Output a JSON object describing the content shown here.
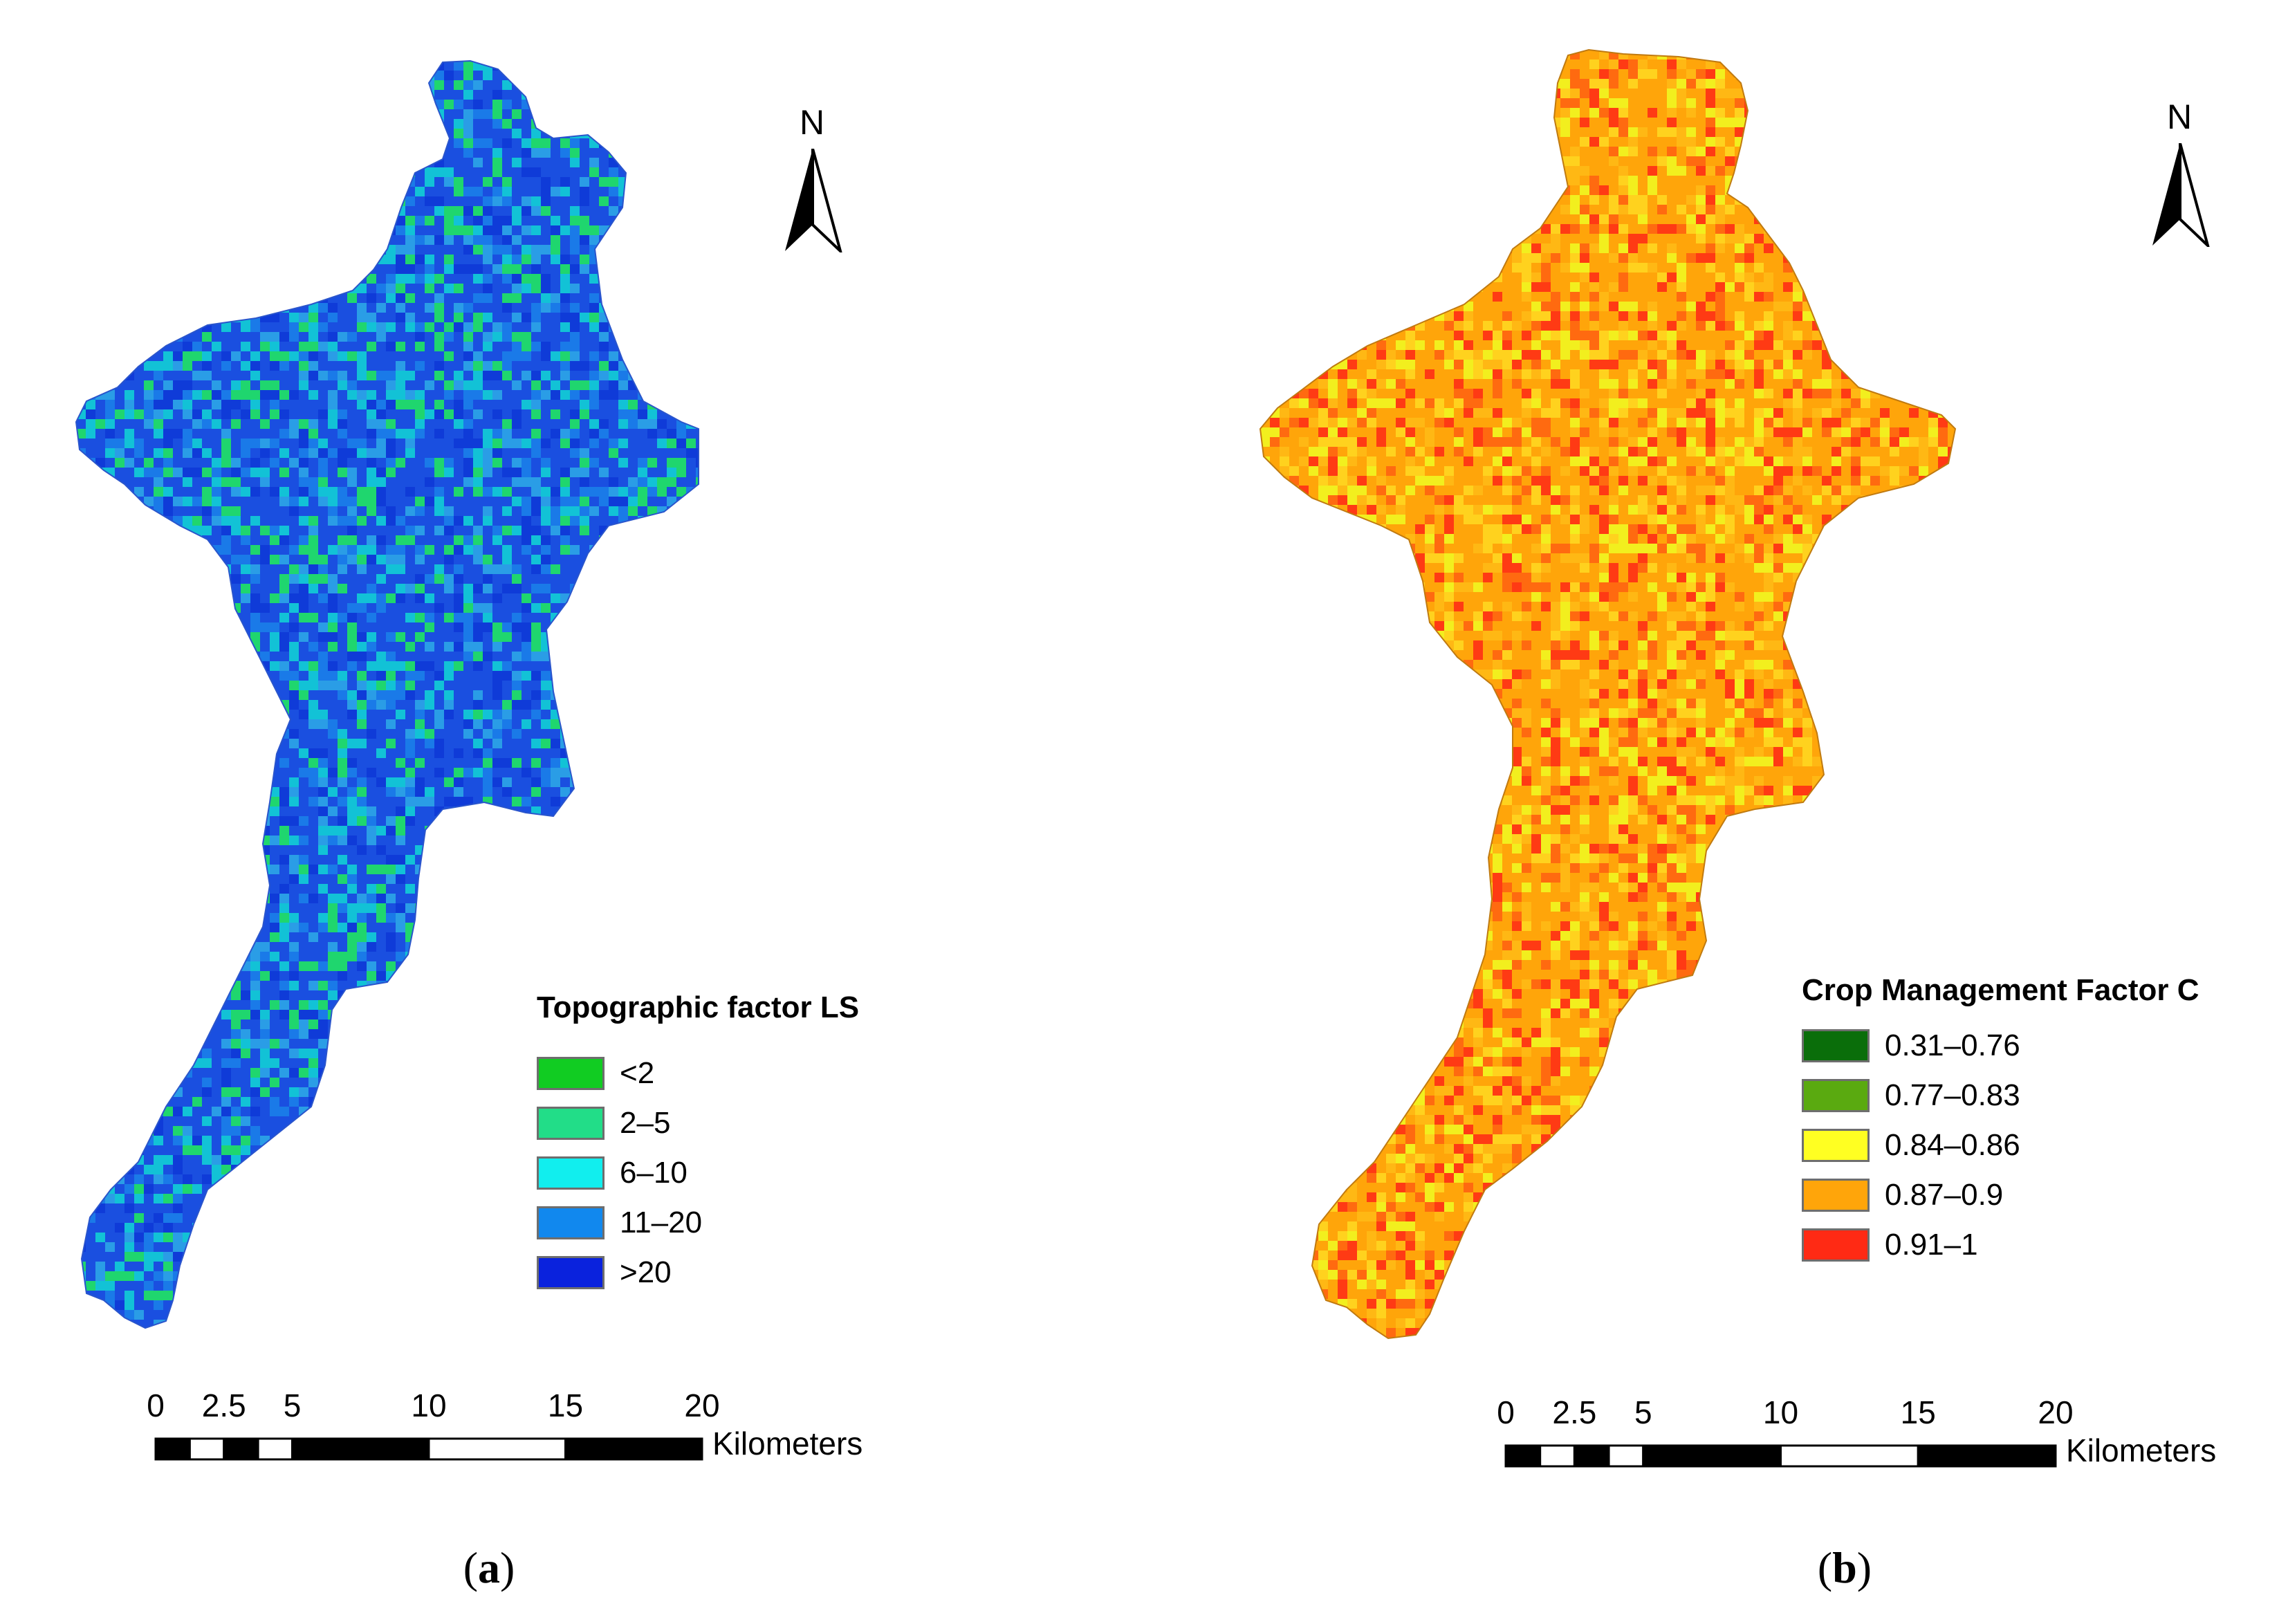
{
  "panels": [
    {
      "id": "a",
      "caption_open": "(",
      "caption_letter": "a",
      "caption_close": ")",
      "north_label": "N",
      "legend": {
        "title": "Topographic factor LS",
        "classes": [
          {
            "label": "<2",
            "color": "#11cc22"
          },
          {
            "label": "2–5",
            "color": "#22dd88"
          },
          {
            "label": "6–10",
            "color": "#11eeee"
          },
          {
            "label": "11–20",
            "color": "#1188ee"
          },
          {
            "label": ">20",
            "color": "#0a22dd"
          }
        ]
      },
      "map_texture": [
        "#1a4fe0",
        "#1a7ae8",
        "#12c2d6",
        "#1fd66e",
        "#2a9de6",
        "#0f3bd8"
      ],
      "scale_bar": {
        "ticks": [
          "0",
          "2.5",
          "5",
          "10",
          "15",
          "20"
        ],
        "unit": "Kilometers"
      }
    },
    {
      "id": "b",
      "caption_open": "(",
      "caption_letter": "b",
      "caption_close": ")",
      "north_label": "N",
      "legend": {
        "title": "Crop Management Factor C",
        "classes": [
          {
            "label": "0.31–0.76",
            "color": "#0a6e0a"
          },
          {
            "label": "0.77–0.83",
            "color": "#5aaa10"
          },
          {
            "label": "0.84–0.86",
            "color": "#ffff22"
          },
          {
            "label": "0.87–0.9",
            "color": "#ffa50a"
          },
          {
            "label": "0.91–1",
            "color": "#ff2a14"
          }
        ]
      },
      "map_texture": [
        "#ffa50a",
        "#ffb814",
        "#ff3a14",
        "#f2ef1e",
        "#ffd21e",
        "#ff6a10"
      ],
      "scale_bar": {
        "ticks": [
          "0",
          "2.5",
          "5",
          "10",
          "15",
          "20"
        ],
        "unit": "Kilometers"
      }
    }
  ]
}
